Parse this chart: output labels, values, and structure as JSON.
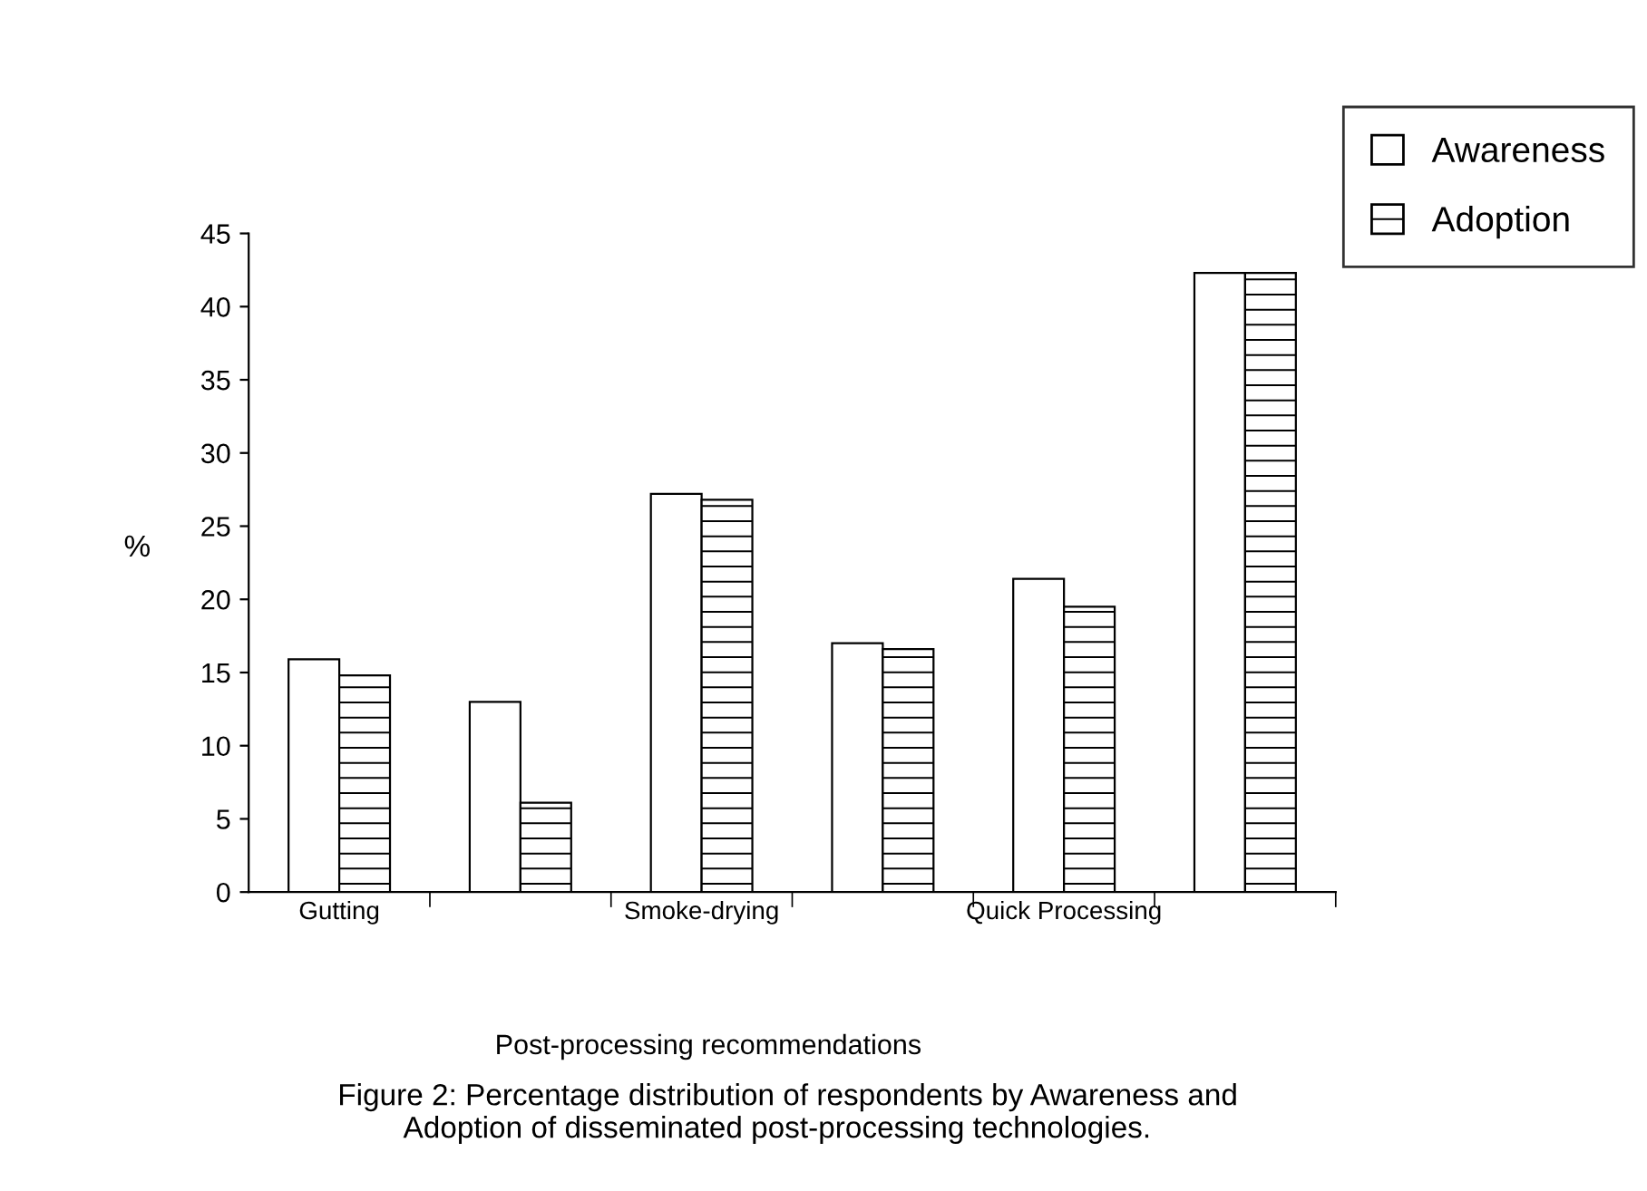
{
  "chart_data": {
    "type": "bar",
    "categories": [
      "Gutting",
      null,
      "Smoke-drying",
      null,
      "Quick Processing",
      null
    ],
    "series": [
      {
        "name": "Awareness",
        "color": "#ffffff",
        "values": [
          15.9,
          13.0,
          27.2,
          17.0,
          21.4,
          42.3
        ]
      },
      {
        "name": "Adoption",
        "color": "#000000",
        "values": [
          14.8,
          6.1,
          26.8,
          16.6,
          19.5,
          42.3
        ]
      }
    ],
    "ylim": [
      0,
      45
    ],
    "yticks": [
      0,
      5,
      10,
      15,
      20,
      25,
      30,
      35,
      40,
      45
    ],
    "xlabel": "Post-processing recommendations",
    "ylabel": "%",
    "annotations": [
      "Figure 2: Percentage distribution of respondents by Awareness and\n        Adoption of disseminated post-processing technologies."
    ],
    "legend": "top right",
    "grid": false
  }
}
